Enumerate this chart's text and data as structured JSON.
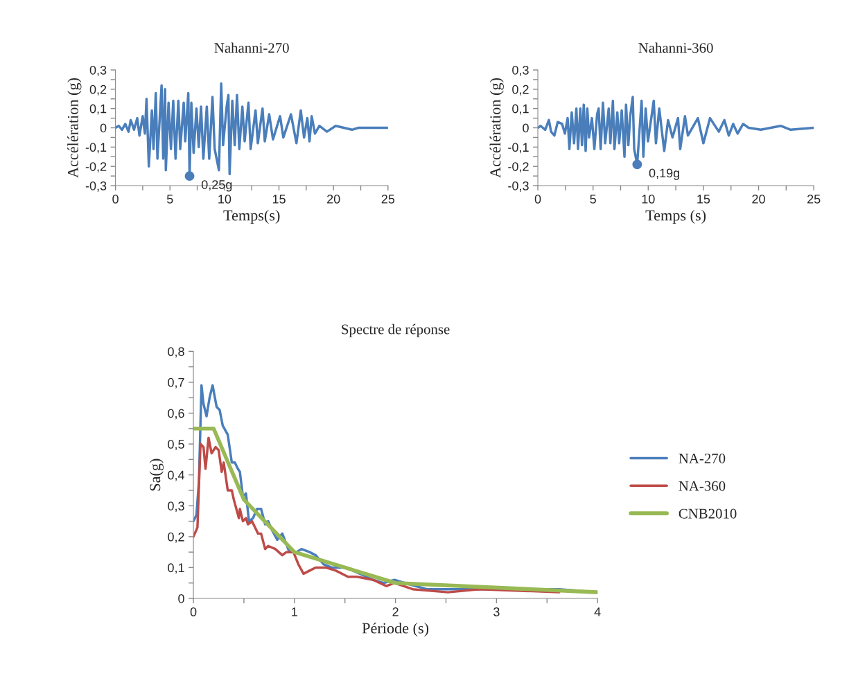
{
  "chart_data": [
    {
      "type": "line",
      "title": "Nahanni-270",
      "xlabel": "Temps(s)",
      "ylabel": "Accélération (g)",
      "xlim": [
        0,
        25
      ],
      "xticks": [
        0,
        {
          "value": 2.5,
          "label": null
        },
        5,
        {
          "value": 7.5,
          "label": null
        },
        10,
        {
          "value": 12.5,
          "label": null
        },
        15,
        {
          "value": 17.5,
          "label": null
        },
        20,
        {
          "value": 22.5,
          "label": null
        },
        25
      ],
      "ylim": [
        -0.3,
        0.3
      ],
      "yticks": [
        {
          "value": -0.3,
          "label": "-0,3"
        },
        {
          "value": -0.25,
          "label": null
        },
        {
          "value": -0.2,
          "label": "-0,2"
        },
        {
          "value": -0.15,
          "label": null
        },
        {
          "value": -0.1,
          "label": "-0,1"
        },
        {
          "value": -0.05,
          "label": null
        },
        0,
        {
          "value": 0.05,
          "label": null
        },
        {
          "value": 0.1,
          "label": "0,1"
        },
        {
          "value": 0.15,
          "label": null
        },
        {
          "value": 0.2,
          "label": "0,2"
        },
        {
          "value": 0.25,
          "label": null
        },
        {
          "value": 0.3,
          "label": "0,3"
        }
      ],
      "grid": false,
      "legend": false,
      "marker": "none",
      "line_style": "solid",
      "annotations": [
        {
          "text": "0,25g",
          "x": 6.8,
          "y": -0.25
        }
      ],
      "series": [
        {
          "color": "#4a7ebb",
          "x": [
            0,
            0.3,
            0.6,
            0.9,
            1.2,
            1.4,
            1.7,
            2.0,
            2.2,
            2.5,
            2.7,
            2.85,
            3.06,
            3.34,
            3.49,
            3.7,
            3.85,
            4.23,
            4.38,
            4.55,
            4.62,
            4.87,
            5.09,
            5.3,
            5.51,
            5.77,
            5.94,
            6.26,
            6.4,
            6.68,
            6.8,
            6.96,
            7.17,
            7.43,
            7.64,
            7.85,
            8.06,
            8.38,
            8.6,
            8.9,
            9.1,
            9.49,
            9.7,
            9.87,
            10.2,
            10.36,
            10.47,
            10.72,
            10.94,
            11.15,
            11.36,
            11.64,
            11.85,
            12.2,
            12.4,
            12.85,
            13.06,
            13.49,
            13.7,
            14.1,
            14.45,
            15.1,
            15.4,
            16.1,
            16.6,
            17.0,
            17.3,
            17.6,
            17.8,
            18.0,
            18.3,
            18.7,
            19.4,
            20.2,
            21.7,
            22.3,
            25
          ],
          "values": [
            0,
            0.01,
            -0.01,
            0.02,
            -0.02,
            0.04,
            -0.01,
            0.05,
            -0.04,
            0.06,
            -0.03,
            0.15,
            -0.2,
            0.09,
            -0.11,
            0.18,
            -0.16,
            0.22,
            -0.16,
            0.2,
            -0.22,
            0.13,
            -0.11,
            0.14,
            -0.16,
            0.14,
            -0.11,
            0.13,
            -0.07,
            0.18,
            -0.25,
            0.13,
            -0.13,
            0.1,
            -0.1,
            0.11,
            -0.16,
            0.11,
            -0.16,
            0.16,
            -0.11,
            -0.22,
            0.23,
            -0.09,
            0.11,
            0.17,
            -0.24,
            0.14,
            -0.09,
            0.17,
            -0.11,
            0.11,
            -0.07,
            0.13,
            -0.11,
            0.09,
            -0.08,
            0.1,
            -0.07,
            0.07,
            -0.06,
            0.06,
            -0.05,
            0.07,
            -0.08,
            0.09,
            -0.05,
            0.05,
            -0.07,
            0.06,
            -0.03,
            0.01,
            -0.02,
            0.01,
            -0.01,
            0,
            0
          ]
        }
      ]
    },
    {
      "type": "line",
      "title": "Nahanni-360",
      "xlabel": "Temps (s)",
      "ylabel": "Accélération (g)",
      "xlim": [
        0,
        25
      ],
      "xticks": [
        0,
        {
          "value": 2.5,
          "label": null
        },
        5,
        {
          "value": 7.5,
          "label": null
        },
        10,
        {
          "value": 12.5,
          "label": null
        },
        15,
        {
          "value": 17.5,
          "label": null
        },
        20,
        {
          "value": 22.5,
          "label": null
        },
        25
      ],
      "ylim": [
        -0.3,
        0.3
      ],
      "yticks": [
        {
          "value": -0.3,
          "label": "-0,3"
        },
        {
          "value": -0.25,
          "label": null
        },
        {
          "value": -0.2,
          "label": "-0,2"
        },
        {
          "value": -0.15,
          "label": null
        },
        {
          "value": -0.1,
          "label": "-0,1"
        },
        {
          "value": -0.05,
          "label": null
        },
        0,
        {
          "value": 0.05,
          "label": null
        },
        {
          "value": 0.1,
          "label": "0,1"
        },
        {
          "value": 0.15,
          "label": null
        },
        {
          "value": 0.2,
          "label": "0,2"
        },
        {
          "value": 0.25,
          "label": null
        },
        {
          "value": 0.3,
          "label": "0,3"
        }
      ],
      "grid": false,
      "legend": false,
      "marker": "none",
      "line_style": "solid",
      "annotations": [
        {
          "text": "0,19g",
          "x": 9.0,
          "y": -0.19
        }
      ],
      "series": [
        {
          "color": "#4a7ebb",
          "x": [
            0,
            0.25,
            0.67,
            1.0,
            1.2,
            1.5,
            1.8,
            2.2,
            2.45,
            2.7,
            2.86,
            3.07,
            3.28,
            3.49,
            3.64,
            3.85,
            4.0,
            4.16,
            4.33,
            4.48,
            4.64,
            4.9,
            5.12,
            5.37,
            5.51,
            5.69,
            5.9,
            6.1,
            6.42,
            6.57,
            6.8,
            6.94,
            7.2,
            7.37,
            7.6,
            7.85,
            7.99,
            8.2,
            8.37,
            8.6,
            8.73,
            9.0,
            9.4,
            9.56,
            9.77,
            9.98,
            10.5,
            10.7,
            11.0,
            11.45,
            11.8,
            12.2,
            12.7,
            12.9,
            13.33,
            13.6,
            14.5,
            15.0,
            15.6,
            16.4,
            16.9,
            17.3,
            17.7,
            18.1,
            18.6,
            19.1,
            20.2,
            22.0,
            22.9,
            25
          ],
          "values": [
            0,
            0.01,
            -0.01,
            0.04,
            -0.02,
            -0.04,
            0.03,
            0.02,
            -0.03,
            0.05,
            -0.11,
            0.08,
            -0.08,
            0.1,
            -0.11,
            0.1,
            -0.09,
            0.12,
            -0.12,
            0.1,
            -0.05,
            0.05,
            -0.11,
            0.07,
            0.1,
            -0.11,
            0.13,
            -0.08,
            0.1,
            -0.08,
            0.14,
            -0.11,
            0.08,
            -0.08,
            0.09,
            -0.15,
            0.12,
            -0.09,
            0.06,
            0.16,
            -0.11,
            -0.19,
            0.14,
            -0.15,
            0.1,
            -0.07,
            0.14,
            -0.08,
            0.1,
            -0.12,
            0.04,
            -0.05,
            0.05,
            -0.11,
            0.06,
            -0.04,
            0.05,
            -0.08,
            0.05,
            -0.02,
            0.04,
            -0.04,
            0.02,
            -0.03,
            0.02,
            0,
            -0.01,
            0.01,
            -0.01,
            0
          ]
        }
      ]
    },
    {
      "type": "line",
      "title": "Spectre de réponse",
      "xlabel": "Période (s)",
      "ylabel": "Sa(g)",
      "xlim": [
        0,
        4
      ],
      "xticks": [
        0,
        {
          "value": 0.5,
          "label": null
        },
        1,
        {
          "value": 1.5,
          "label": null
        },
        2,
        {
          "value": 2.5,
          "label": null
        },
        3,
        {
          "value": 3.5,
          "label": null
        },
        4
      ],
      "ylim": [
        0,
        0.8
      ],
      "yticks": [
        0,
        {
          "value": 0.05,
          "label": null
        },
        {
          "value": 0.1,
          "label": "0,1"
        },
        {
          "value": 0.15,
          "label": null
        },
        {
          "value": 0.2,
          "label": "0,2"
        },
        {
          "value": 0.25,
          "label": null
        },
        {
          "value": 0.3,
          "label": "0,3"
        },
        {
          "value": 0.35,
          "label": null
        },
        {
          "value": 0.4,
          "label": "0,4"
        },
        {
          "value": 0.45,
          "label": null
        },
        {
          "value": 0.5,
          "label": "0,5"
        },
        {
          "value": 0.55,
          "label": null
        },
        {
          "value": 0.6,
          "label": "0,6"
        },
        {
          "value": 0.65,
          "label": null
        },
        {
          "value": 0.7,
          "label": "0,7"
        },
        {
          "value": 0.75,
          "label": null
        },
        {
          "value": 0.8,
          "label": "0,8"
        }
      ],
      "grid": false,
      "legend": "right",
      "marker": "none",
      "line_style": "solid",
      "series": [
        {
          "name": "NA-270",
          "color": "#4a7ebb",
          "x": [
            0,
            0.03,
            0.055,
            0.08,
            0.1,
            0.13,
            0.16,
            0.19,
            0.23,
            0.26,
            0.29,
            0.34,
            0.38,
            0.41,
            0.44,
            0.46,
            0.49,
            0.52,
            0.55,
            0.59,
            0.63,
            0.67,
            0.71,
            0.74,
            0.78,
            0.83,
            0.88,
            0.95,
            1.02,
            1.07,
            1.15,
            1.21,
            1.29,
            1.37,
            1.52,
            1.58,
            1.78,
            1.88,
            1.99,
            2.09,
            2.31,
            2.57,
            3.1,
            3.62,
            4
          ],
          "values": [
            0.25,
            0.27,
            0.38,
            0.69,
            0.63,
            0.59,
            0.65,
            0.69,
            0.62,
            0.61,
            0.56,
            0.53,
            0.44,
            0.44,
            0.42,
            0.41,
            0.33,
            0.34,
            0.25,
            0.26,
            0.29,
            0.29,
            0.24,
            0.25,
            0.22,
            0.19,
            0.21,
            0.15,
            0.15,
            0.16,
            0.15,
            0.14,
            0.11,
            0.1,
            0.1,
            0.09,
            0.06,
            0.05,
            0.06,
            0.05,
            0.03,
            0.03,
            0.03,
            0.03,
            0.02
          ]
        },
        {
          "name": "NA-360",
          "color": "#be4b48",
          "x": [
            0,
            0.04,
            0.07,
            0.1,
            0.12,
            0.15,
            0.18,
            0.22,
            0.25,
            0.28,
            0.3,
            0.34,
            0.38,
            0.4,
            0.45,
            0.46,
            0.49,
            0.52,
            0.54,
            0.58,
            0.64,
            0.67,
            0.71,
            0.74,
            0.81,
            0.88,
            0.92,
            0.99,
            1.04,
            1.09,
            1.15,
            1.21,
            1.31,
            1.41,
            1.53,
            1.62,
            1.78,
            1.91,
            1.99,
            2.17,
            2.52,
            2.83,
            3.62
          ],
          "values": [
            0.2,
            0.23,
            0.5,
            0.49,
            0.42,
            0.52,
            0.47,
            0.49,
            0.48,
            0.41,
            0.44,
            0.35,
            0.35,
            0.32,
            0.26,
            0.29,
            0.25,
            0.26,
            0.24,
            0.25,
            0.21,
            0.21,
            0.16,
            0.17,
            0.16,
            0.14,
            0.15,
            0.15,
            0.11,
            0.08,
            0.09,
            0.1,
            0.1,
            0.09,
            0.07,
            0.07,
            0.06,
            0.04,
            0.05,
            0.03,
            0.02,
            0.03,
            0.02
          ]
        },
        {
          "name": "CNB2010",
          "color": "#98b954",
          "x": [
            0,
            0.2,
            0.5,
            1.0,
            2.0,
            4.0
          ],
          "values": [
            0.55,
            0.55,
            0.32,
            0.15,
            0.05,
            0.02
          ]
        }
      ]
    }
  ]
}
